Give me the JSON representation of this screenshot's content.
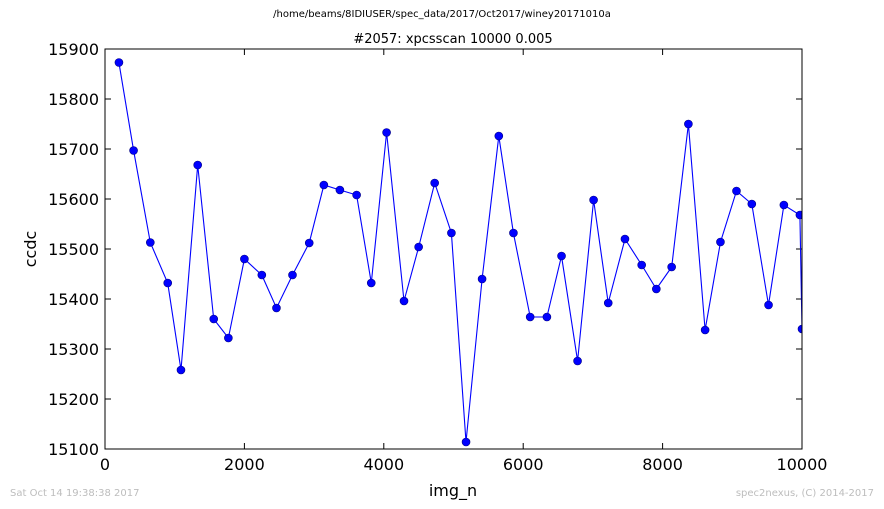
{
  "suptitle": "/home/beams/8IDIUSER/spec_data/2017/Oct2017/winey20171010a",
  "footer": {
    "timestamp": "Sat Oct 14 19:38:38 2017",
    "credit": "spec2nexus, (C) 2014-2017"
  },
  "colors": {
    "series": "#0000ff",
    "marker_edge": "#000080"
  },
  "chart_data": {
    "type": "line",
    "title": "#2057: xpcsscan 10000 0.005",
    "xlabel": "img_n",
    "ylabel": "ccdc",
    "xlim": [
      0,
      10000
    ],
    "ylim": [
      15100,
      15900
    ],
    "xticks": [
      0,
      2000,
      4000,
      6000,
      8000,
      10000
    ],
    "yticks": [
      15100,
      15200,
      15300,
      15400,
      15500,
      15600,
      15700,
      15800,
      15900
    ],
    "markers": "circle",
    "grid": false,
    "series": [
      {
        "x": [
          200,
          410,
          650,
          900,
          1090,
          1330,
          1560,
          1770,
          2000,
          2250,
          2460,
          2690,
          2930,
          3140,
          3370,
          3610,
          3820,
          4040,
          4290,
          4500,
          4730,
          4970,
          5180,
          5410,
          5650,
          5860,
          6100,
          6340,
          6550,
          6780,
          7010,
          7220,
          7460,
          7700,
          7910,
          8130,
          8370,
          8610,
          8830,
          9060,
          9280,
          9520,
          9740,
          9970,
          10000
        ],
        "y": [
          15873,
          15697,
          15513,
          15432,
          15258,
          15668,
          15360,
          15322,
          15480,
          15448,
          15382,
          15448,
          15512,
          15628,
          15618,
          15608,
          15432,
          15733,
          15396,
          15504,
          15632,
          15532,
          15114,
          15440,
          15726,
          15532,
          15364,
          15364,
          15486,
          15276,
          15598,
          15392,
          15520,
          15468,
          15420,
          15464,
          15750,
          15338,
          15514,
          15616,
          15590,
          15388,
          15588,
          15568,
          15340
        ]
      }
    ]
  }
}
